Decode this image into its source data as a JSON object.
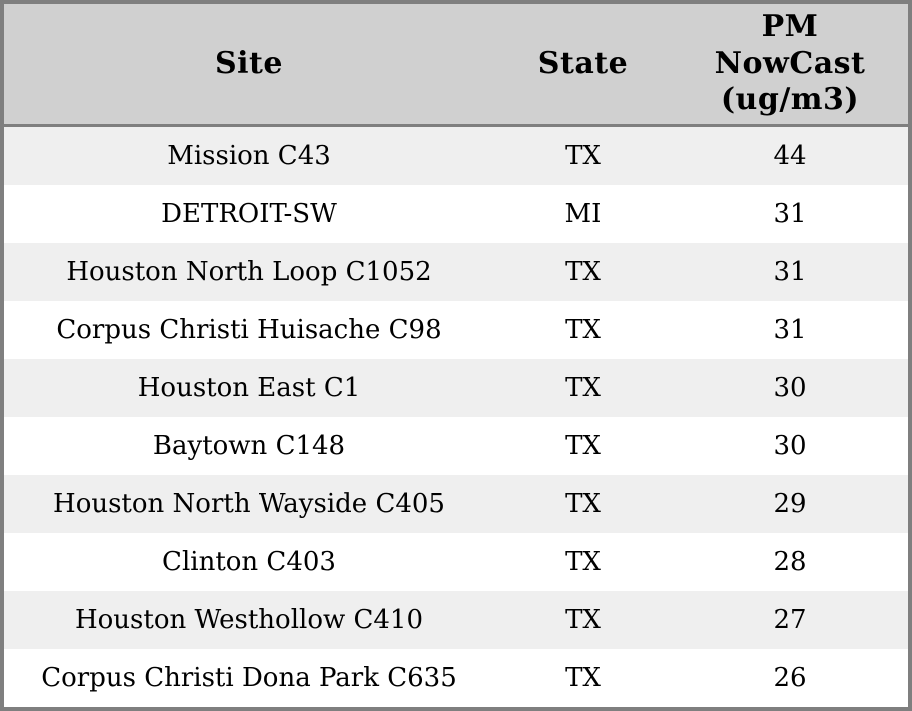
{
  "header": {
    "site": "Site",
    "state": "State",
    "pm_lines": [
      "PM",
      "NowCast",
      "(ug/m3)"
    ]
  },
  "rows": [
    {
      "site": "Mission C43",
      "state": "TX",
      "pm": "44"
    },
    {
      "site": "DETROIT-SW",
      "state": "MI",
      "pm": "31"
    },
    {
      "site": "Houston North Loop C1052",
      "state": "TX",
      "pm": "31"
    },
    {
      "site": "Corpus Christi Huisache C98",
      "state": "TX",
      "pm": "31"
    },
    {
      "site": "Houston East C1",
      "state": "TX",
      "pm": "30"
    },
    {
      "site": "Baytown C148",
      "state": "TX",
      "pm": "30"
    },
    {
      "site": "Houston North Wayside C405",
      "state": "TX",
      "pm": "29"
    },
    {
      "site": "Clinton C403",
      "state": "TX",
      "pm": "28"
    },
    {
      "site": "Houston Westhollow C410",
      "state": "TX",
      "pm": "27"
    },
    {
      "site": "Corpus Christi Dona Park C635",
      "state": "TX",
      "pm": "26"
    }
  ],
  "colors": {
    "border": "#7f7f7f",
    "header_bg": "#d0d0d0",
    "stripe_bg": "#efefef",
    "row_bg": "#ffffff",
    "text": "#000000"
  },
  "chart_data": {
    "type": "table",
    "title": "",
    "columns": [
      "Site",
      "State",
      "PM NowCast (ug/m3)"
    ],
    "rows": [
      [
        "Mission C43",
        "TX",
        44
      ],
      [
        "DETROIT-SW",
        "MI",
        31
      ],
      [
        "Houston North Loop C1052",
        "TX",
        31
      ],
      [
        "Corpus Christi Huisache C98",
        "TX",
        31
      ],
      [
        "Houston East C1",
        "TX",
        30
      ],
      [
        "Baytown C148",
        "TX",
        30
      ],
      [
        "Houston North Wayside C405",
        "TX",
        29
      ],
      [
        "Clinton C403",
        "TX",
        28
      ],
      [
        "Houston Westhollow C410",
        "TX",
        27
      ],
      [
        "Corpus Christi Dona Park C635",
        "TX",
        26
      ]
    ]
  }
}
